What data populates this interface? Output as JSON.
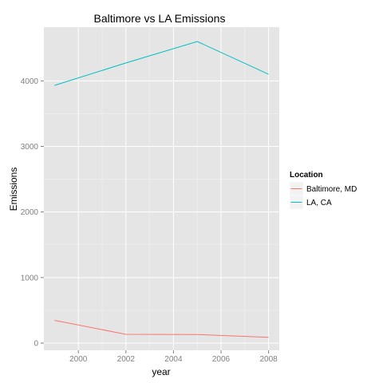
{
  "chart_data": {
    "type": "line",
    "title": "Baltimore vs LA Emissions",
    "xlabel": "year",
    "ylabel": "Emissions",
    "xlim": [
      1998.55,
      2008.45
    ],
    "ylim": [
      -110,
      4820
    ],
    "x_ticks": [
      2000,
      2002,
      2004,
      2006,
      2008
    ],
    "y_ticks": [
      0,
      1000,
      2000,
      3000,
      4000
    ],
    "grid": true,
    "legend": {
      "title": "Location",
      "placement": "right"
    },
    "series": [
      {
        "name": "Baltimore, MD",
        "color": "#F8766D",
        "points": [
          {
            "x": 1999,
            "y": 347
          },
          {
            "x": 2002,
            "y": 134
          },
          {
            "x": 2005,
            "y": 131
          },
          {
            "x": 2008,
            "y": 88
          }
        ]
      },
      {
        "name": "LA, CA",
        "color": "#00BFC4",
        "points": [
          {
            "x": 1999,
            "y": 3931
          },
          {
            "x": 2002,
            "y": 4274
          },
          {
            "x": 2005,
            "y": 4601
          },
          {
            "x": 2008,
            "y": 4101
          }
        ]
      }
    ]
  }
}
